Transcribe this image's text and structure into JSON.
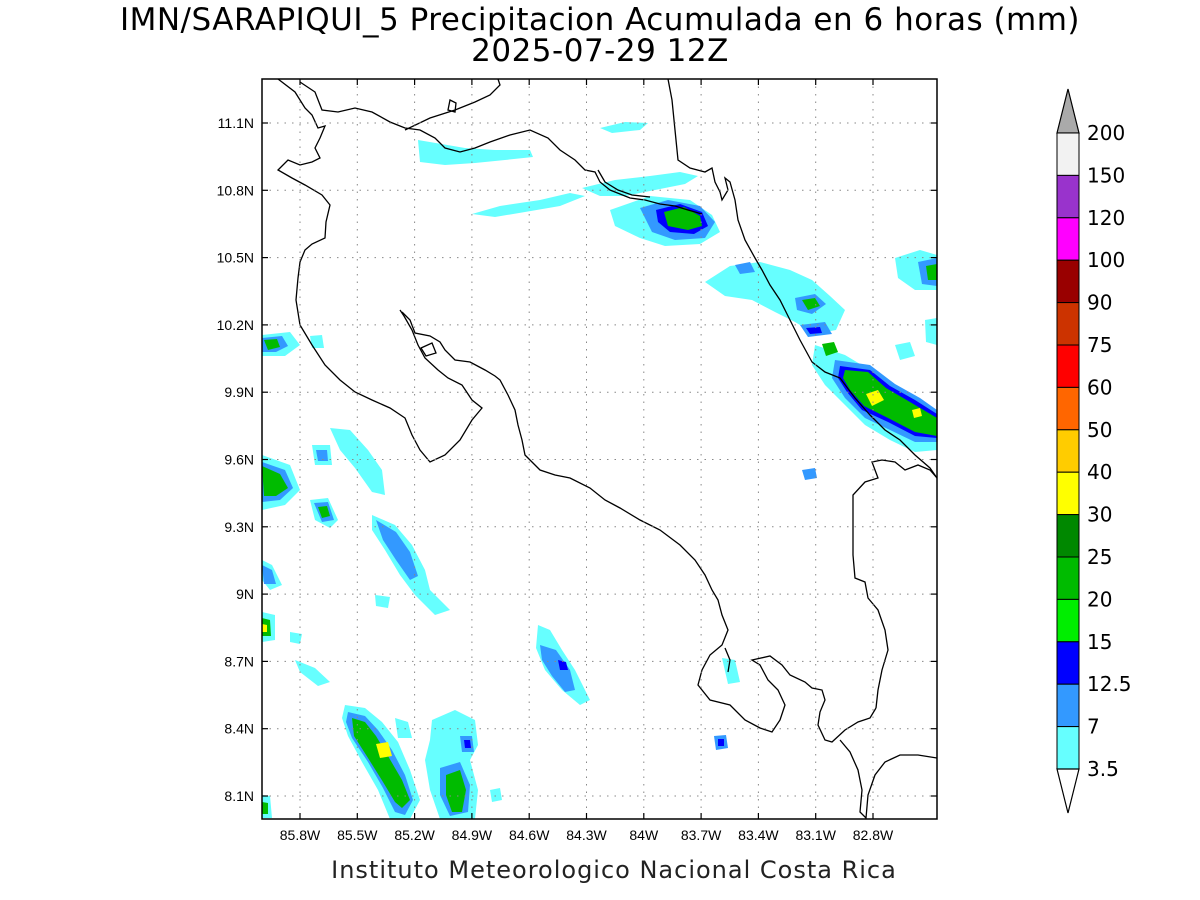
{
  "header": {
    "title": "IMN/SARAPIQUI_5 Precipitacion Acumulada en 6 horas (mm)",
    "subtitle": "2025-07-29 12Z"
  },
  "footer": {
    "credit": "Instituto Meteorologico Nacional Costa Rica"
  },
  "map": {
    "lon_range": [
      -86.1,
      -83.1
    ],
    "lat_range": [
      8.0,
      11.3
    ],
    "lon_ticks": [
      {
        "value": -85.8,
        "label": "85.8W"
      },
      {
        "value": -85.5,
        "label": "85.5W"
      },
      {
        "value": -85.2,
        "label": "85.2W"
      },
      {
        "value": -84.9,
        "label": "84.9W"
      },
      {
        "value": -84.6,
        "label": "84.6W"
      },
      {
        "value": -84.3,
        "label": "84.3W"
      },
      {
        "value": -84.0,
        "label": "84W"
      },
      {
        "value": -83.7,
        "label": "83.7W"
      },
      {
        "value": -83.4,
        "label": "83.4W"
      },
      {
        "value": -83.1,
        "label": "83.1W"
      },
      {
        "value": -82.8,
        "label": "82.8W"
      }
    ],
    "lat_ticks": [
      {
        "value": 11.1,
        "label": "11.1N"
      },
      {
        "value": 10.8,
        "label": "10.8N"
      },
      {
        "value": 10.5,
        "label": "10.5N"
      },
      {
        "value": 10.2,
        "label": "10.2N"
      },
      {
        "value": 9.9,
        "label": "9.9N"
      },
      {
        "value": 9.6,
        "label": "9.6N"
      },
      {
        "value": 9.3,
        "label": "9.3N"
      },
      {
        "value": 9.0,
        "label": "9N"
      },
      {
        "value": 8.7,
        "label": "8.7N"
      },
      {
        "value": 8.4,
        "label": "8.4N"
      },
      {
        "value": 8.1,
        "label": "8.1N"
      }
    ],
    "grid": true
  },
  "colorbar": {
    "levels": [
      "200",
      "150",
      "120",
      "100",
      "90",
      "75",
      "60",
      "50",
      "40",
      "30",
      "25",
      "20",
      "15",
      "12.5",
      "7",
      "3.5"
    ],
    "colors": [
      "#f2f2f2",
      "#9933cc",
      "#ff00ff",
      "#990000",
      "#cc3300",
      "#ff0000",
      "#ff6600",
      "#ffcc00",
      "#ffff00",
      "#008800",
      "#00bb00",
      "#00ee00",
      "#0000ff",
      "#3399ff",
      "#66ffff"
    ],
    "top_arrow_color": "#aaaaaa",
    "bottom_arrow_color": "#ffffff"
  }
}
